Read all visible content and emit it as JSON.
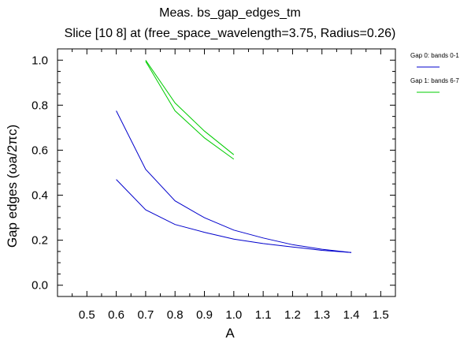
{
  "chart_data": {
    "type": "line",
    "title": "Meas. bs_gap_edges_tm",
    "subtitle": "Slice [10  8] at (free_space_wavelength=3.75, Radius=0.26)",
    "xlabel": "A",
    "ylabel": "Gap edges (ωa/2πc)",
    "xlim": [
      0.4,
      1.55
    ],
    "ylim": [
      -0.05,
      1.05
    ],
    "xticks": [
      "0.5",
      "0.6",
      "0.7",
      "0.8",
      "0.9",
      "1.0",
      "1.1",
      "1.2",
      "1.3",
      "1.4",
      "1.5"
    ],
    "yticks": [
      "0.0",
      "0.2",
      "0.4",
      "0.6",
      "0.8",
      "1.0"
    ],
    "grid": false,
    "legend_position": "right-outside",
    "series": [
      {
        "name": "Gap 0: bands 0-1",
        "color": "#0000cc",
        "lines": [
          {
            "x": [
              0.6,
              0.7,
              0.8,
              0.9,
              1.0,
              1.1,
              1.2,
              1.3,
              1.4
            ],
            "y": [
              0.775,
              0.515,
              0.375,
              0.3,
              0.245,
              0.21,
              0.18,
              0.16,
              0.145
            ]
          },
          {
            "x": [
              0.6,
              0.7,
              0.8,
              0.9,
              1.0,
              1.1,
              1.2,
              1.3,
              1.4
            ],
            "y": [
              0.47,
              0.335,
              0.27,
              0.235,
              0.205,
              0.185,
              0.17,
              0.155,
              0.145
            ]
          }
        ]
      },
      {
        "name": "Gap 1: bands 6-7",
        "color": "#00cc00",
        "lines": [
          {
            "x": [
              0.7,
              0.8,
              0.9,
              1.0
            ],
            "y": [
              1.0,
              0.81,
              0.685,
              0.58
            ]
          },
          {
            "x": [
              0.7,
              0.8,
              0.9,
              1.0
            ],
            "y": [
              0.995,
              0.775,
              0.655,
              0.56
            ]
          }
        ]
      }
    ]
  }
}
